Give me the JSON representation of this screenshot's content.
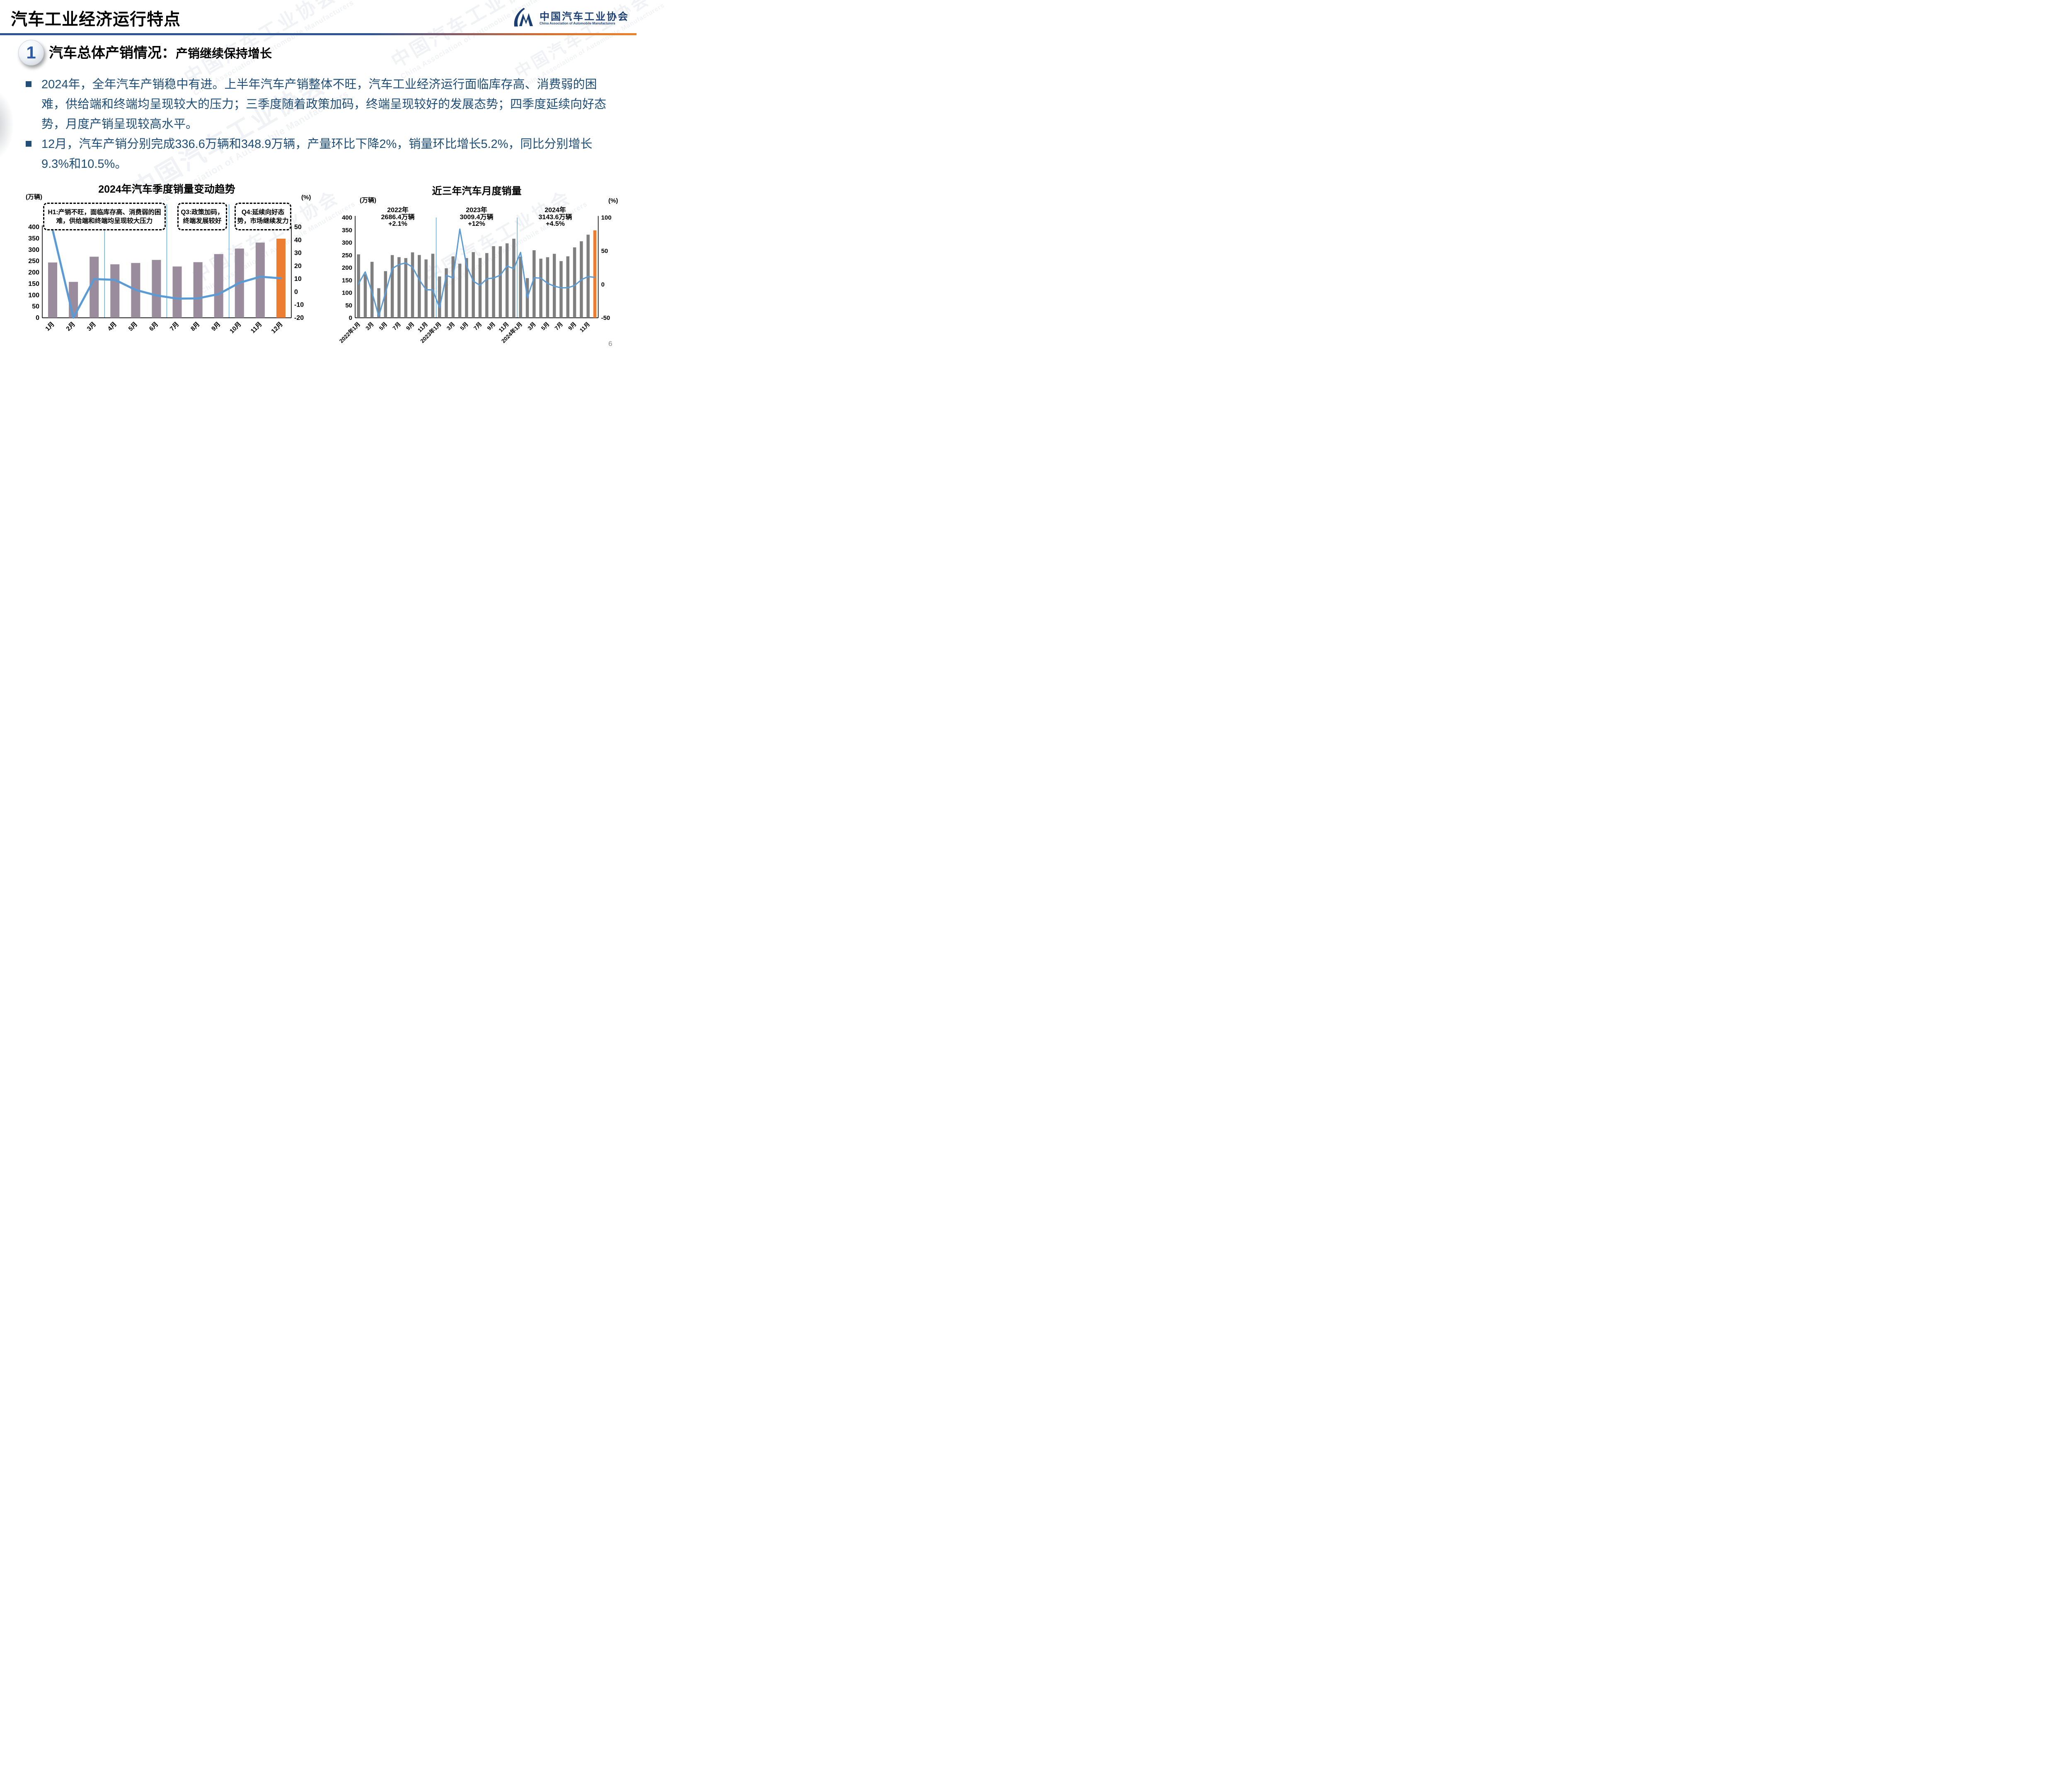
{
  "page": {
    "number": "6"
  },
  "header": {
    "title": "汽车工业经济运行特点",
    "logo": {
      "mark": "CM-swoosh-logo",
      "org_cn": "中国汽车工业协会",
      "org_en": "China Association of Automobile Manufacturers"
    }
  },
  "section": {
    "index": "1",
    "title": "汽车总体产销情况：",
    "subtitle": "产销继续保持增长"
  },
  "bullets": [
    {
      "text": "2024年，全年汽车产销稳中有进。上半年汽车产销整体不旺，汽车工业经济运行面临库存高、消费弱的困难，供给端和终端均呈现较大的压力；三季度随着政策加码，终端呈现较好的发展态势；四季度延续向好态势，月度产销呈现较高水平。"
    },
    {
      "text": "12月，汽车产销分别完成336.6万辆和348.9万辆，产量环比下降2%，销量环比增长5.2%，同比分别增长9.3%和10.5%。"
    }
  ],
  "colors": {
    "body_text": "#1F4E79",
    "header_bar_blue": "#2E5596",
    "header_bar_orange": "#EE8128",
    "logo_blue": "#1A3E73"
  },
  "chart_data": [
    {
      "type": "bar",
      "title": "2024年汽车季度销量变动趋势",
      "unit_left": "(万辆)",
      "unit_right": "(%)",
      "categories": [
        "1月",
        "2月",
        "3月",
        "4月",
        "5月",
        "6月",
        "7月",
        "8月",
        "9月",
        "10月",
        "11月",
        "12月"
      ],
      "series": [
        {
          "name": "月度销量(万辆)",
          "type": "bar",
          "axis": "left",
          "values": [
            243.9,
            158.4,
            269.4,
            235.9,
            241.7,
            255.2,
            226.2,
            245.3,
            280.9,
            305.3,
            331.6,
            348.9
          ]
        },
        {
          "name": "同比增速(%)",
          "type": "line",
          "axis": "right",
          "values": [
            47.9,
            -19.9,
            9.9,
            9.3,
            1.5,
            -2.7,
            -5.2,
            -5.0,
            -1.7,
            7.0,
            11.7,
            10.5
          ]
        }
      ],
      "ylim_left": [
        0,
        400,
        50
      ],
      "ylim_right": [
        -20,
        50,
        10
      ],
      "highlight_index": 11,
      "separators_after": [
        3,
        6,
        9
      ],
      "bar_color": "#9A8C9C",
      "highlight_color": "#ED7D31",
      "line_color": "#5B9BD5",
      "separator_color": "#5B9BD5",
      "grid": false,
      "legend": "none",
      "annotations": [
        {
          "text": "H1:产销不旺，面临库存高、消费弱的困难，供给端和终端均呈现较大压力"
        },
        {
          "text": "Q3:政策加码，终端发展较好"
        },
        {
          "text": "Q4:延续向好态势，市场继续发力"
        }
      ]
    },
    {
      "type": "bar",
      "title": "近三年汽车月度销量",
      "unit_left": "(万辆)",
      "unit_right": "(%)",
      "x_labels": [
        "2022年1月",
        "3月",
        "5月",
        "7月",
        "9月",
        "11月",
        "2023年1月",
        "3月",
        "5月",
        "7月",
        "9月",
        "11月",
        "2024年1月",
        "3月",
        "5月",
        "7月",
        "9月",
        "11月"
      ],
      "x_label_every": 2,
      "series": [
        {
          "name": "月度销量(万辆)",
          "type": "bar",
          "axis": "left",
          "values": [
            253.1,
            173.7,
            223.4,
            118.1,
            186.2,
            250.2,
            242.0,
            238.3,
            261.0,
            250.5,
            232.8,
            255.6,
            164.9,
            197.6,
            245.1,
            215.9,
            238.2,
            262.2,
            238.8,
            258.2,
            285.8,
            285.3,
            297.0,
            315.6,
            243.9,
            158.4,
            269.4,
            235.9,
            241.7,
            255.2,
            226.2,
            245.3,
            280.9,
            305.3,
            331.6,
            348.9
          ]
        },
        {
          "name": "同比增速(%)",
          "type": "line",
          "axis": "right",
          "values": [
            0.9,
            18.7,
            -11.7,
            -47.6,
            -12.6,
            23.8,
            29.7,
            32.1,
            25.7,
            6.9,
            -7.9,
            -8.4,
            -35.0,
            13.5,
            9.7,
            82.7,
            27.9,
            4.8,
            -1.4,
            8.4,
            9.5,
            13.8,
            27.4,
            23.5,
            47.9,
            -19.9,
            9.9,
            9.3,
            1.5,
            -2.7,
            -5.2,
            -5.0,
            -1.7,
            7.0,
            11.7,
            10.5
          ]
        }
      ],
      "ylim_left": [
        0,
        400,
        50
      ],
      "ylim_right": [
        -50,
        100,
        50
      ],
      "highlight_index": 35,
      "separators_after": [
        12,
        24
      ],
      "bar_color": "#7F7F7F",
      "highlight_color": "#ED7D31",
      "line_color": "#5B9BD5",
      "separator_color": "#5B9BD5",
      "grid": false,
      "legend": "none",
      "year_blocks": [
        {
          "year": "2022年",
          "total": "2686.4万辆",
          "growth": "+2.1%"
        },
        {
          "year": "2023年",
          "total": "3009.4万辆",
          "growth": "+12%"
        },
        {
          "year": "2024年",
          "total": "3143.6万辆",
          "growth": "+4.5%"
        }
      ]
    }
  ]
}
